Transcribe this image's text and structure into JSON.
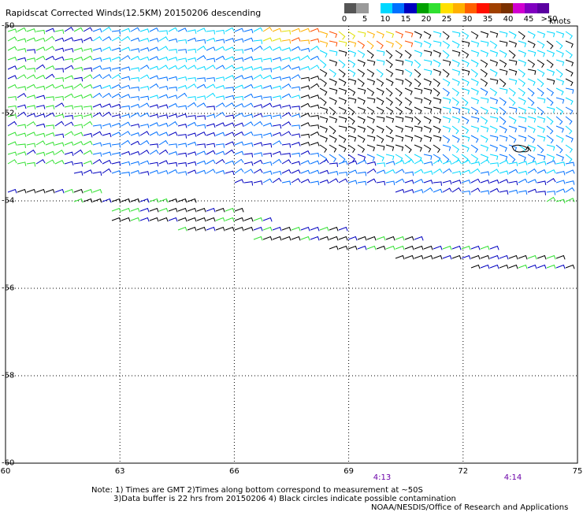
{
  "title": "Rapidscat Corrected Winds(12.5KM) 20150206 descending",
  "scale": {
    "labels": [
      "0",
      "5",
      "10",
      "15",
      "20",
      "25",
      "30",
      "35",
      "40",
      "45",
      ">50"
    ],
    "unit": "knots",
    "colors": [
      "#555555",
      "#9a9a9a",
      "#ffffff",
      "#00d8ff",
      "#0070ff",
      "#0000c0",
      "#00a000",
      "#30e030",
      "#ffe000",
      "#ffb000",
      "#ff6000",
      "#ff1000",
      "#a04000",
      "#7a3000",
      "#d000d0",
      "#8000c0",
      "#5a00a0"
    ]
  },
  "axes": {
    "lon_ticks": [
      "60",
      "63",
      "66",
      "69",
      "72",
      "75"
    ],
    "lat_ticks": [
      "-50",
      "-52",
      "-54",
      "-56",
      "-58",
      "-60"
    ]
  },
  "time_labels": [
    "4:13",
    "4:14"
  ],
  "notes": {
    "line1": "Note: 1) Times are GMT 2)Times along bottom correspond to measurement at ~50S",
    "line2": "3)Data buffer is 22 hrs from 20150206 4) Black circles indicate possible contamination",
    "line3": "NOAA/NESDIS/Office of Research and Applications"
  }
}
